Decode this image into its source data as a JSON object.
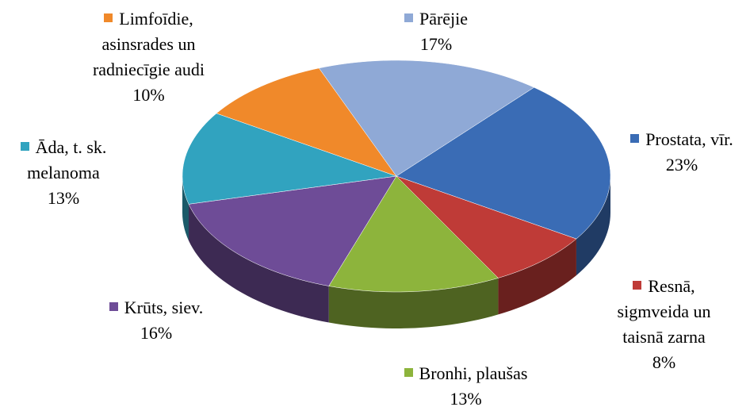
{
  "chart_data": {
    "type": "pie",
    "categories": [
      "Prostata, vīr.",
      "Resnā, sigmveida un taisnā zarna",
      "Bronhi, plaušas",
      "Krūts, siev.",
      "Āda, t. sk. melanoma",
      "Limfoīdie, asinsrades un radniecīgie audi",
      "Pārējie"
    ],
    "values": [
      23,
      8,
      13,
      16,
      13,
      10,
      17
    ],
    "value_labels": [
      "23%",
      "8%",
      "13%",
      "16%",
      "13%",
      "10%",
      "17%"
    ],
    "colors": [
      "#3a6cb5",
      "#bf3b37",
      "#8db43c",
      "#6e4c97",
      "#31a3bf",
      "#f0892a",
      "#8fa9d6"
    ],
    "legend": "labels"
  }
}
